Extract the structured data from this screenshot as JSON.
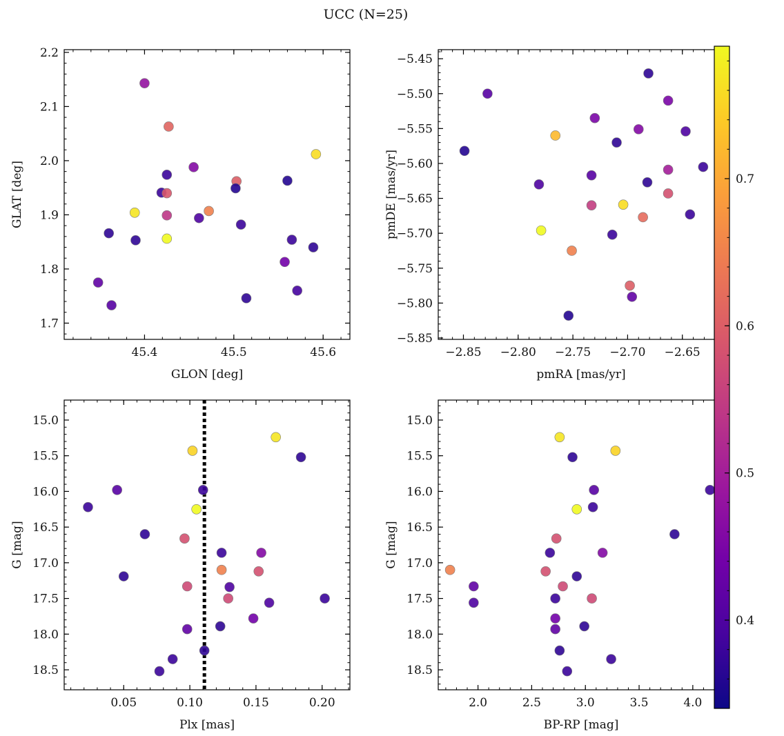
{
  "figure": {
    "title": "UCC (N=25)"
  },
  "colormap": {
    "name": "plasma",
    "min": 0.34,
    "max": 0.79,
    "ticks": [
      0.4,
      0.5,
      0.6,
      0.7
    ],
    "tick_labels": [
      "0.4",
      "0.5",
      "0.6",
      "0.7"
    ],
    "stops": [
      "#0d0887",
      "#46039f",
      "#7201a8",
      "#9c179e",
      "#bd3786",
      "#d8576b",
      "#ed7953",
      "#fb9f3a",
      "#fdca26",
      "#f0f921"
    ]
  },
  "chart_data": [
    {
      "type": "scatter",
      "id": "glon-glat",
      "title": "",
      "xlabel": "GLON [deg]",
      "ylabel": "GLAT [deg]",
      "xlim": [
        45.31,
        45.63
      ],
      "ylim": [
        1.67,
        2.205
      ],
      "y_inverted": false,
      "xticks": [
        45.4,
        45.5,
        45.6
      ],
      "xtick_labels": [
        "45.4",
        "45.5",
        "45.6"
      ],
      "yticks": [
        1.7,
        1.8,
        1.9,
        2.0,
        2.1,
        2.2
      ],
      "ytick_labels": [
        "1.7",
        "1.8",
        "1.9",
        "2.0",
        "2.1",
        "2.2"
      ],
      "x": [
        45.4,
        45.427,
        45.592,
        45.455,
        45.425,
        45.419,
        45.425,
        45.503,
        45.502,
        45.472,
        45.389,
        45.461,
        45.425,
        45.508,
        45.36,
        45.39,
        45.425,
        45.565,
        45.589,
        45.557,
        45.348,
        45.571,
        45.514,
        45.363,
        45.56
      ],
      "y": [
        2.143,
        2.063,
        2.012,
        1.988,
        1.974,
        1.941,
        1.94,
        1.962,
        1.949,
        1.907,
        1.904,
        1.894,
        1.899,
        1.882,
        1.866,
        1.853,
        1.856,
        1.854,
        1.84,
        1.813,
        1.775,
        1.76,
        1.746,
        1.733,
        1.963
      ],
      "c": [
        0.48,
        0.61,
        0.76,
        0.46,
        0.38,
        0.38,
        0.59,
        0.6,
        0.36,
        0.65,
        0.77,
        0.4,
        0.54,
        0.38,
        0.37,
        0.37,
        0.79,
        0.38,
        0.37,
        0.44,
        0.42,
        0.39,
        0.37,
        0.41,
        0.36
      ]
    },
    {
      "type": "scatter",
      "id": "pmra-pmde",
      "title": "",
      "xlabel": "pmRA [mas/yr]",
      "ylabel": "pmDE [mas/yr]",
      "xlim": [
        -2.873,
        -2.612
      ],
      "ylim": [
        -5.852,
        -5.437
      ],
      "y_inverted": false,
      "xticks": [
        -2.85,
        -2.8,
        -2.75,
        -2.7,
        -2.65
      ],
      "xtick_labels": [
        "−2.85",
        "−2.80",
        "−2.75",
        "−2.70",
        "−2.65"
      ],
      "yticks": [
        -5.85,
        -5.8,
        -5.75,
        -5.7,
        -5.65,
        -5.6,
        -5.55,
        -5.5,
        -5.45
      ],
      "ytick_labels": [
        "−5.85",
        "−5.80",
        "−5.75",
        "−5.70",
        "−5.65",
        "−5.60",
        "−5.55",
        "−5.50",
        "−5.45"
      ],
      "x": [
        -2.681,
        -2.828,
        -2.663,
        -2.73,
        -2.766,
        -2.69,
        -2.647,
        -2.849,
        -2.71,
        -2.663,
        -2.631,
        -2.733,
        -2.781,
        -2.682,
        -2.663,
        -2.733,
        -2.704,
        -2.686,
        -2.643,
        -2.779,
        -2.714,
        -2.751,
        -2.698,
        -2.696,
        -2.754
      ],
      "y": [
        -5.471,
        -5.5,
        -5.51,
        -5.535,
        -5.56,
        -5.551,
        -5.554,
        -5.582,
        -5.57,
        -5.609,
        -5.605,
        -5.617,
        -5.63,
        -5.627,
        -5.643,
        -5.66,
        -5.659,
        -5.677,
        -5.673,
        -5.696,
        -5.702,
        -5.725,
        -5.775,
        -5.791,
        -5.818
      ],
      "c": [
        0.37,
        0.41,
        0.45,
        0.45,
        0.72,
        0.46,
        0.4,
        0.36,
        0.37,
        0.5,
        0.38,
        0.41,
        0.4,
        0.37,
        0.58,
        0.55,
        0.76,
        0.62,
        0.38,
        0.79,
        0.38,
        0.65,
        0.6,
        0.42,
        0.36
      ]
    },
    {
      "type": "scatter",
      "id": "plx-g",
      "title": "",
      "xlabel": "Plx [mas]",
      "ylabel": "G [mag]",
      "xlim": [
        0.005,
        0.221
      ],
      "ylim": [
        14.72,
        18.78
      ],
      "y_inverted": true,
      "vline": 0.111,
      "xticks": [
        0.05,
        0.1,
        0.15,
        0.2
      ],
      "xtick_labels": [
        "0.05",
        "0.10",
        "0.15",
        "0.20"
      ],
      "yticks": [
        15.0,
        15.5,
        16.0,
        16.5,
        17.0,
        17.5,
        18.0,
        18.5
      ],
      "ytick_labels": [
        "15.0",
        "15.5",
        "16.0",
        "16.5",
        "17.0",
        "17.5",
        "18.0",
        "18.5"
      ],
      "x": [
        0.165,
        0.102,
        0.184,
        0.045,
        0.11,
        0.023,
        0.105,
        0.066,
        0.096,
        0.124,
        0.154,
        0.124,
        0.152,
        0.05,
        0.098,
        0.13,
        0.129,
        0.202,
        0.16,
        0.148,
        0.098,
        0.123,
        0.111,
        0.087,
        0.077
      ],
      "y": [
        15.24,
        15.43,
        15.52,
        15.98,
        15.98,
        16.22,
        16.25,
        16.6,
        16.66,
        16.86,
        16.86,
        17.1,
        17.12,
        17.19,
        17.33,
        17.34,
        17.5,
        17.5,
        17.56,
        17.78,
        17.93,
        17.89,
        18.23,
        18.35,
        18.52
      ],
      "c": [
        0.77,
        0.75,
        0.37,
        0.41,
        0.38,
        0.38,
        0.79,
        0.37,
        0.58,
        0.38,
        0.46,
        0.65,
        0.58,
        0.37,
        0.57,
        0.4,
        0.57,
        0.38,
        0.4,
        0.44,
        0.42,
        0.37,
        0.37,
        0.38,
        0.38
      ]
    },
    {
      "type": "scatter",
      "id": "bprp-g",
      "title": "",
      "xlabel": "BP-RP [mag]",
      "ylabel": "G [mag]",
      "xlim": [
        1.63,
        4.29
      ],
      "ylim": [
        14.72,
        18.78
      ],
      "y_inverted": true,
      "xticks": [
        2.0,
        2.5,
        3.0,
        3.5,
        4.0
      ],
      "xtick_labels": [
        "2.0",
        "2.5",
        "3.0",
        "3.5",
        "4.0"
      ],
      "yticks": [
        15.0,
        15.5,
        16.0,
        16.5,
        17.0,
        17.5,
        18.0,
        18.5
      ],
      "ytick_labels": [
        "15.0",
        "15.5",
        "16.0",
        "16.5",
        "17.0",
        "17.5",
        "18.0",
        "18.5"
      ],
      "x": [
        2.76,
        3.28,
        2.88,
        3.08,
        4.16,
        3.07,
        2.92,
        3.83,
        2.73,
        2.67,
        3.16,
        1.74,
        2.63,
        2.92,
        1.96,
        2.79,
        3.06,
        2.72,
        1.96,
        2.72,
        2.72,
        2.99,
        2.76,
        3.24,
        2.83
      ],
      "y": [
        15.24,
        15.43,
        15.52,
        15.98,
        15.98,
        16.22,
        16.25,
        16.6,
        16.66,
        16.86,
        16.86,
        17.1,
        17.12,
        17.19,
        17.33,
        17.33,
        17.5,
        17.5,
        17.56,
        17.78,
        17.93,
        17.89,
        18.23,
        18.35,
        18.52
      ],
      "c": [
        0.77,
        0.75,
        0.37,
        0.41,
        0.38,
        0.38,
        0.79,
        0.37,
        0.58,
        0.38,
        0.46,
        0.65,
        0.58,
        0.37,
        0.42,
        0.57,
        0.57,
        0.38,
        0.4,
        0.44,
        0.42,
        0.37,
        0.37,
        0.38,
        0.38
      ]
    }
  ]
}
